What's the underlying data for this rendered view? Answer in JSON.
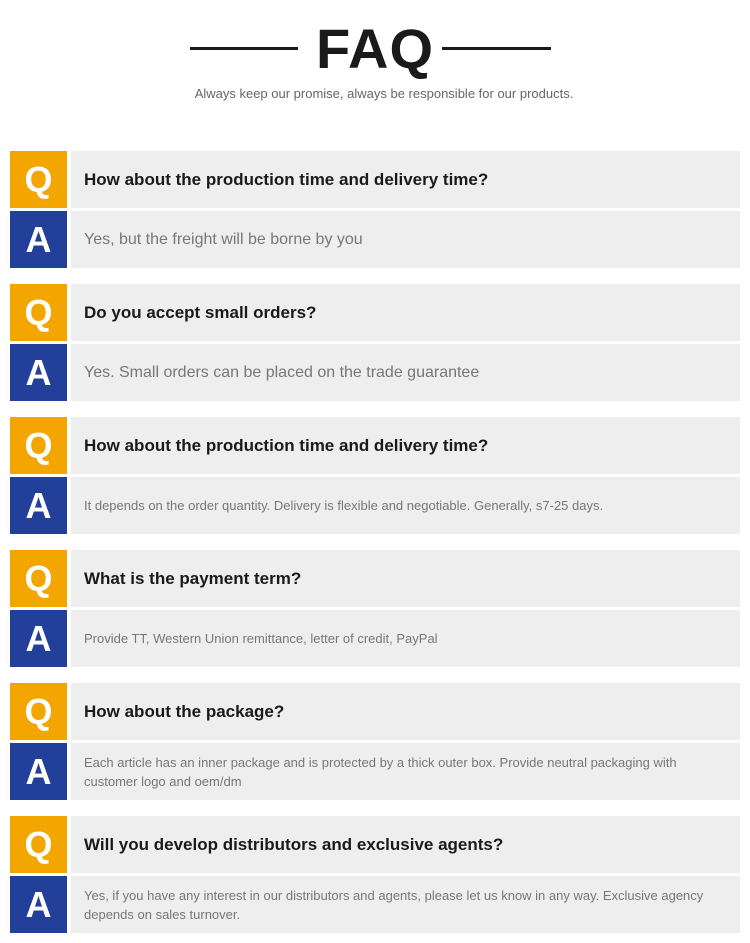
{
  "header": {
    "title": "FAQ",
    "subtitle": "Always keep our promise, always be responsible for our products."
  },
  "colors": {
    "q_badge": "#f3a600",
    "a_badge": "#223f99",
    "row_bg": "#eeeeee"
  },
  "badges": {
    "q": "Q",
    "a": "A"
  },
  "faqs": [
    {
      "q": "How about the production time and delivery time?",
      "a": "Yes, but the freight will be borne by you"
    },
    {
      "q": "Do you accept small orders?",
      "a": "Yes. Small orders can be placed on the trade guarantee"
    },
    {
      "q": "How about the production time and delivery time?",
      "a": "It depends on the order quantity. Delivery is flexible and negotiable. Generally, s7-25 days."
    },
    {
      "q": "What is the payment term?",
      "a": "Provide TT, Western Union remittance, letter of credit, PayPal"
    },
    {
      "q": "How about the package?",
      "a": "Each article has an inner package and is protected by a thick outer box. Provide neutral packaging with customer logo and oem/dm"
    },
    {
      "q": "Will you develop distributors and exclusive agents?",
      "a": "Yes, if you have any interest in our distributors and agents, please let us know in any way. Exclusive agency depends on sales turnover."
    }
  ]
}
